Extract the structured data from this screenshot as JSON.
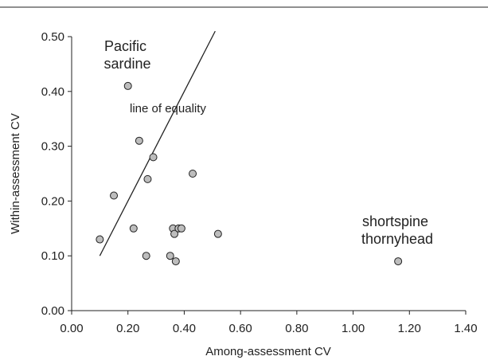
{
  "chart_data": {
    "type": "scatter",
    "title": "",
    "xlabel": "Among-assessment CV",
    "ylabel": "Within-assessment CV",
    "xlim": [
      0,
      1.4
    ],
    "ylim": [
      0,
      0.5
    ],
    "grid": false,
    "x_ticks": [
      "0.00",
      "0.20",
      "0.40",
      "0.60",
      "0.80",
      "1.00",
      "1.20",
      "1.40"
    ],
    "y_ticks": [
      "0.00",
      "0.10",
      "0.20",
      "0.30",
      "0.40",
      "0.50"
    ],
    "points": [
      {
        "x": 0.1,
        "y": 0.13
      },
      {
        "x": 0.15,
        "y": 0.21
      },
      {
        "x": 0.2,
        "y": 0.41
      },
      {
        "x": 0.22,
        "y": 0.15
      },
      {
        "x": 0.24,
        "y": 0.31
      },
      {
        "x": 0.265,
        "y": 0.1
      },
      {
        "x": 0.27,
        "y": 0.24
      },
      {
        "x": 0.29,
        "y": 0.28
      },
      {
        "x": 0.35,
        "y": 0.1
      },
      {
        "x": 0.36,
        "y": 0.15
      },
      {
        "x": 0.365,
        "y": 0.14
      },
      {
        "x": 0.37,
        "y": 0.09
      },
      {
        "x": 0.38,
        "y": 0.15
      },
      {
        "x": 0.39,
        "y": 0.15
      },
      {
        "x": 0.43,
        "y": 0.25
      },
      {
        "x": 0.52,
        "y": 0.14
      },
      {
        "x": 1.16,
        "y": 0.09
      }
    ],
    "reference_line": {
      "label": "line of equality",
      "x": [
        0.1,
        0.51
      ],
      "y": [
        0.1,
        0.51
      ]
    },
    "annotations": [
      {
        "lines": [
          "Pacific",
          "sardine"
        ]
      },
      {
        "lines": [
          "shortspine",
          "thornyhead"
        ]
      }
    ]
  }
}
